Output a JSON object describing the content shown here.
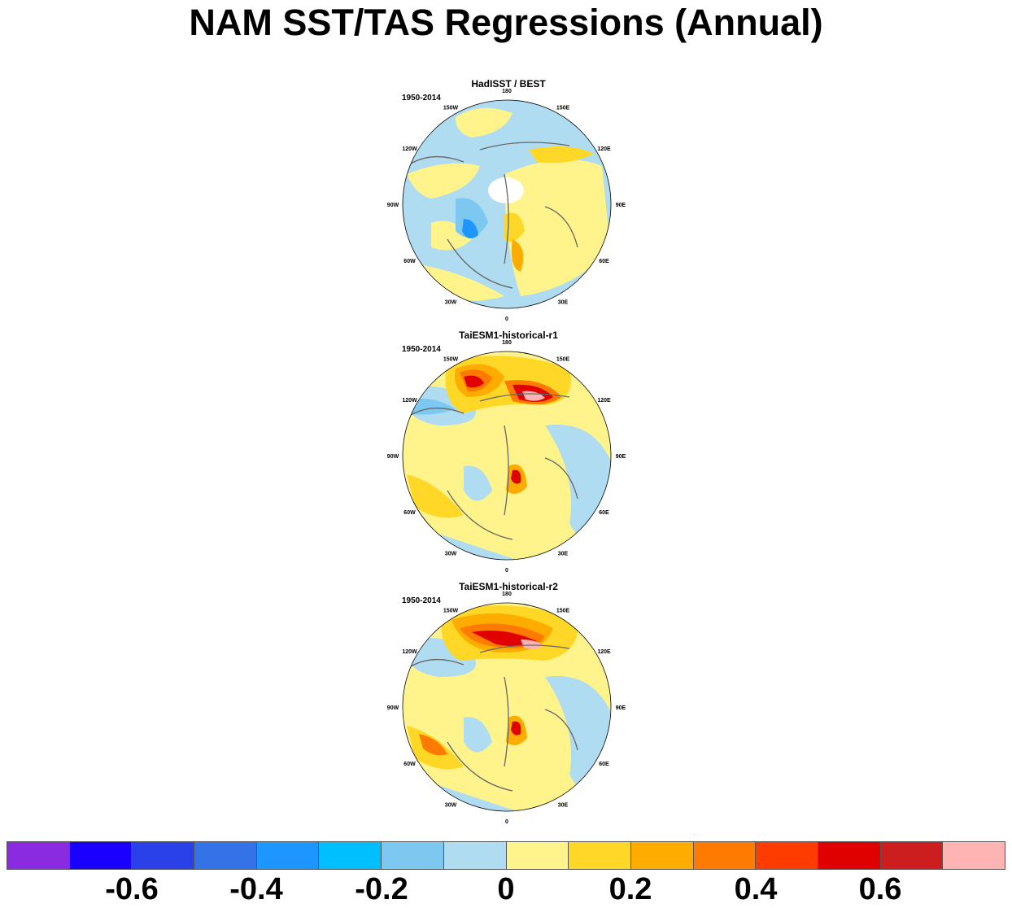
{
  "title": "NAM SST/TAS Regressions (Annual)",
  "panels": [
    {
      "title": "HadISST / BEST",
      "period": "1950-2014"
    },
    {
      "title": "TaiESM1-historical-r1",
      "period": "1950-2014"
    },
    {
      "title": "TaiESM1-historical-r2",
      "period": "1950-2014"
    }
  ],
  "longitude_labels": [
    "180",
    "150E",
    "120E",
    "90E",
    "60E",
    "30E",
    "0",
    "30W",
    "60W",
    "90W",
    "120W",
    "150W"
  ],
  "colorbar": {
    "levels": [
      -0.8,
      -0.7,
      -0.6,
      -0.5,
      -0.4,
      -0.3,
      -0.2,
      -0.1,
      0,
      0.1,
      0.2,
      0.3,
      0.4,
      0.5,
      0.6,
      0.7,
      0.8
    ],
    "colors": [
      "#8a2be2",
      "#1a00ff",
      "#2a40e8",
      "#3472e8",
      "#1e96ff",
      "#00bfff",
      "#7cc8f0",
      "#b0dcf2",
      "#fff48c",
      "#ffd726",
      "#ffac00",
      "#ff7a00",
      "#ff3c00",
      "#e00000",
      "#cc1e1e",
      "#ffb4b4"
    ],
    "tick_labels": [
      "-0.6",
      "-0.4",
      "-0.2",
      "0",
      "0.2",
      "0.4",
      "0.6"
    ]
  }
}
